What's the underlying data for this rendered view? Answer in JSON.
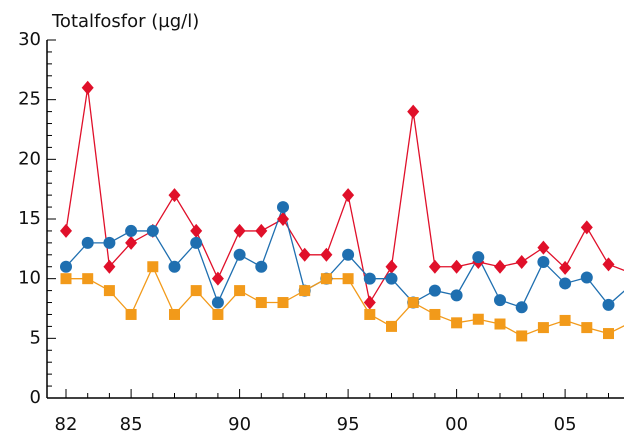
{
  "chart_data": {
    "type": "line",
    "title": "Totalfosfor (µg/l)",
    "categories": [
      "82",
      null,
      null,
      "85",
      null,
      null,
      null,
      null,
      "90",
      null,
      null,
      null,
      null,
      "95",
      null,
      null,
      null,
      null,
      "00",
      null,
      null,
      null,
      null,
      "05",
      null,
      null,
      null
    ],
    "series": [
      {
        "color": "#e0102a",
        "marker": "diamond",
        "values": [
          14,
          26,
          11,
          13,
          14,
          17,
          14,
          10,
          14,
          14,
          15,
          12,
          12,
          17,
          8,
          11,
          24,
          11,
          11,
          11.4,
          11,
          11.4,
          12.6,
          10.9,
          14.3,
          11.2,
          10.5
        ]
      },
      {
        "color": "#1f6fb0",
        "marker": "circle",
        "values": [
          11,
          13,
          13,
          14,
          14,
          11,
          13,
          8,
          12,
          11,
          16,
          9,
          10,
          12,
          10,
          10,
          8,
          9,
          8.6,
          11.8,
          8.2,
          7.6,
          11.4,
          9.6,
          10.1,
          7.8,
          9.4
        ]
      },
      {
        "color": "#f29a1a",
        "marker": "square",
        "values": [
          10,
          10,
          9,
          7,
          11,
          7,
          9,
          7,
          9,
          8,
          8,
          9,
          10,
          10,
          7,
          6,
          8,
          7,
          6.3,
          6.6,
          6.2,
          5.2,
          5.9,
          6.5,
          5.9,
          5.4,
          6.3
        ]
      }
    ],
    "ylim": [
      0,
      30
    ],
    "yticks": [
      0,
      5,
      10,
      15,
      20,
      25,
      30
    ]
  }
}
